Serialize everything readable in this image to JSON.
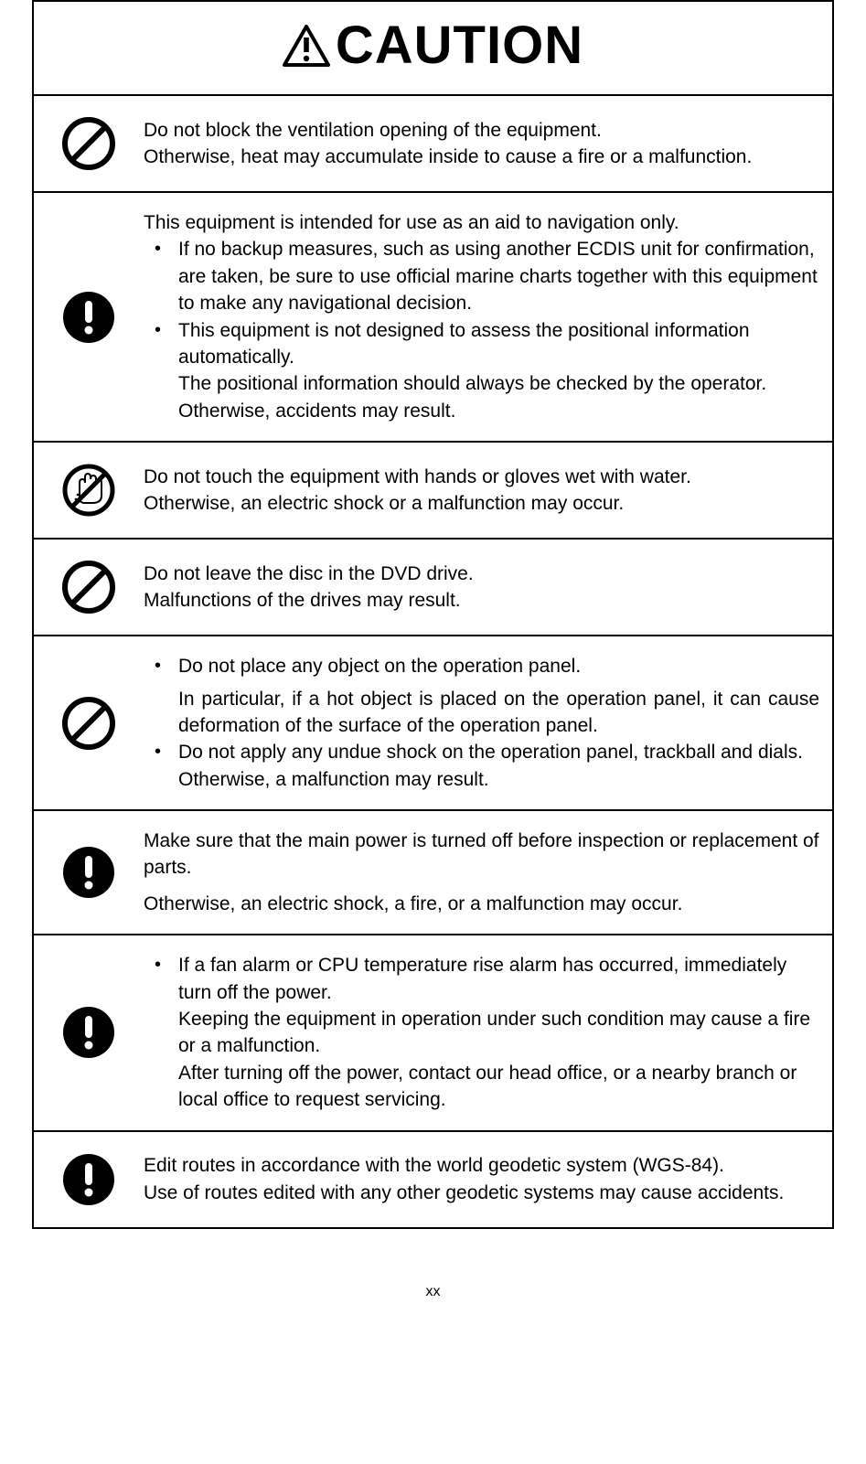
{
  "header": {
    "title": "CAUTION",
    "icon": "warning-triangle"
  },
  "items": [
    {
      "icon": "prohibit",
      "vcenter": true,
      "content": [
        {
          "type": "p",
          "text": "Do not block the ventilation opening of the equipment."
        },
        {
          "type": "p",
          "text": "Otherwise, heat may accumulate inside to cause a fire or a malfunction."
        }
      ]
    },
    {
      "icon": "attention",
      "content": [
        {
          "type": "p",
          "text": "This equipment is intended for use as an aid to navigation only."
        },
        {
          "type": "ul",
          "items": [
            {
              "text": "If no backup measures, such as using another ECDIS unit for confirmation, are taken, be sure to use official marine charts together with this equipment to make any navigational decision."
            },
            {
              "text": "This equipment is not designed to assess the positional information automatically.",
              "after": [
                "The positional information should always be checked by the operator.",
                "Otherwise, accidents may result."
              ]
            }
          ]
        }
      ]
    },
    {
      "icon": "no-wet-hand",
      "vcenter": true,
      "content": [
        {
          "type": "p",
          "text": "Do not touch the equipment with hands or gloves wet with water."
        },
        {
          "type": "p",
          "text": "Otherwise, an electric shock or a malfunction may occur."
        }
      ]
    },
    {
      "icon": "prohibit",
      "vcenter": true,
      "content": [
        {
          "type": "p",
          "text": "Do not leave the disc in the DVD drive."
        },
        {
          "type": "p",
          "text": "Malfunctions of the drives may result."
        }
      ]
    },
    {
      "icon": "prohibit",
      "content": [
        {
          "type": "ul",
          "loose": true,
          "items": [
            {
              "text": "Do not place any object on the operation panel.",
              "after_justify": [
                "In particular, if a hot object is placed on the operation panel, it can cause deformation of the surface of the operation panel."
              ]
            },
            {
              "text": "Do not apply any undue shock on the operation panel, trackball and dials. Otherwise, a malfunction may result."
            }
          ]
        }
      ]
    },
    {
      "icon": "attention",
      "vcenter": true,
      "content": [
        {
          "type": "p",
          "text": "Make sure that the main power is turned off before inspection or replacement of parts.",
          "loose_after": true
        },
        {
          "type": "p",
          "text": "Otherwise, an electric shock, a fire, or a malfunction may occur."
        }
      ]
    },
    {
      "icon": "attention",
      "content": [
        {
          "type": "ul",
          "items": [
            {
              "text": "If a fan alarm or CPU temperature rise alarm has occurred, immediately turn off the power.",
              "after": [
                "Keeping the equipment in operation under such condition may cause a fire or a malfunction.",
                "After turning off the power, contact our head office, or a nearby branch or local office to request servicing."
              ]
            }
          ]
        }
      ]
    },
    {
      "icon": "attention",
      "vcenter": true,
      "content": [
        {
          "type": "p",
          "text": "Edit routes in accordance with the world geodetic system (WGS-84)."
        },
        {
          "type": "p",
          "text": "Use of routes edited with any other geodetic systems may cause accidents."
        }
      ]
    }
  ],
  "page_number": "xx",
  "colors": {
    "text": "#000000",
    "border": "#000000",
    "bg": "#ffffff"
  }
}
